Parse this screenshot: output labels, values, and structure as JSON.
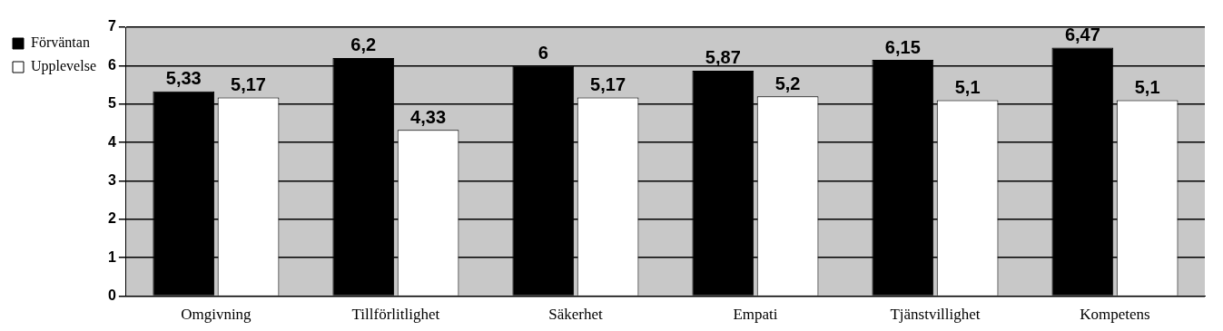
{
  "chart_data": {
    "type": "bar",
    "categories": [
      "Omgivning",
      "Tillförlitlighet",
      "Säkerhet",
      "Empati",
      "Tjänstvillighet",
      "Kompetens"
    ],
    "series": [
      {
        "name": "Förväntan",
        "color": "#000000",
        "values": [
          5.33,
          6.2,
          6,
          5.87,
          6.15,
          6.47
        ],
        "value_labels": [
          "5,33",
          "6,2",
          "6",
          "5,87",
          "6,15",
          "6,47"
        ]
      },
      {
        "name": "Upplevelse",
        "color": "#ffffff",
        "values": [
          5.17,
          4.33,
          5.17,
          5.2,
          5.1,
          5.1
        ],
        "value_labels": [
          "5,17",
          "4,33",
          "5,17",
          "5,2",
          "5,1",
          "5,1"
        ]
      }
    ],
    "ylim": [
      0,
      7
    ],
    "yticks": [
      0,
      1,
      2,
      3,
      4,
      5,
      6,
      7
    ],
    "grid": true,
    "legend": "upper left",
    "data_labels": true
  }
}
